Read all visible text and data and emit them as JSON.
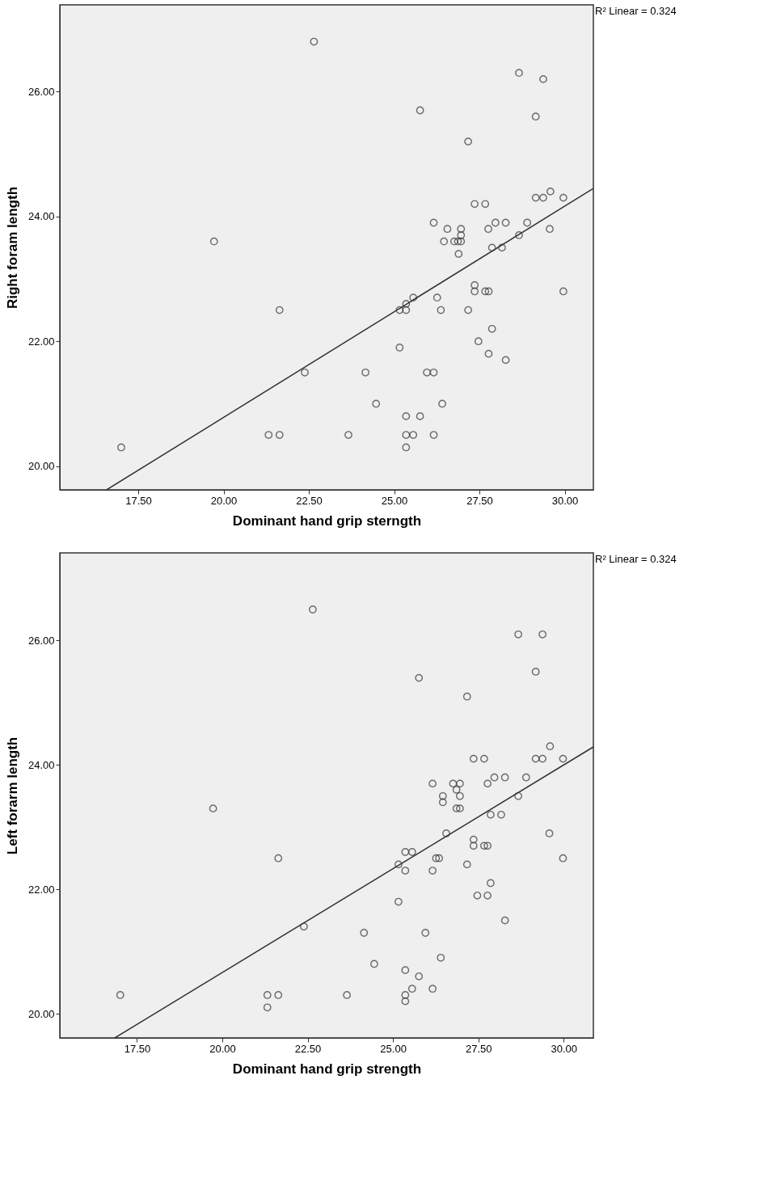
{
  "chart_data": [
    {
      "type": "scatter",
      "xlabel": "Dominant hand grip sterngth",
      "ylabel": "Right foram length",
      "xlim": [
        15.2,
        30.84
      ],
      "ylim": [
        19.62,
        27.39
      ],
      "xticks": [
        {
          "value": 17.5,
          "label": "17.50"
        },
        {
          "value": 20,
          "label": "20.00"
        },
        {
          "value": 22.5,
          "label": "22.50"
        },
        {
          "value": 25,
          "label": "25.00"
        },
        {
          "value": 27.5,
          "label": "27.50"
        },
        {
          "value": 30,
          "label": "30.00"
        }
      ],
      "yticks": [
        {
          "value": 20,
          "label": "20.00"
        },
        {
          "value": 22,
          "label": "22.00"
        },
        {
          "value": 24,
          "label": "24.00"
        },
        {
          "value": 26,
          "label": "26.00"
        }
      ],
      "annotations": [
        "R² Linear = 0.324"
      ],
      "series": [
        {
          "marker": "circle",
          "color": "#333333",
          "x": [
            22.65,
            19.72,
            21.64,
            22.38,
            24.16,
            24.47,
            17.0,
            21.32,
            21.64,
            23.66,
            28.66,
            29.37,
            25.76,
            29.15,
            27.17,
            27.36,
            27.67,
            29.15,
            29.37,
            29.58,
            29.96,
            26.16,
            26.56,
            26.96,
            26.96,
            27.76,
            27.97,
            28.27,
            28.9,
            29.56,
            26.46,
            26.76,
            26.87,
            26.96,
            26.89,
            28.66,
            27.87,
            28.16,
            27.36,
            27.36,
            27.67,
            27.77,
            29.96,
            25.56,
            25.35,
            26.26,
            25.16,
            25.35,
            26.37,
            27.17,
            27.87,
            27.47,
            27.77,
            28.27,
            25.16,
            25.96,
            26.16,
            26.41,
            25.35,
            25.76,
            25.35,
            25.56,
            26.16,
            25.35
          ],
          "values": [
            26.8,
            23.6,
            22.5,
            21.5,
            21.5,
            21.0,
            20.3,
            20.5,
            20.5,
            20.5,
            26.3,
            26.2,
            25.7,
            25.6,
            25.2,
            24.2,
            24.2,
            24.3,
            24.3,
            24.4,
            24.3,
            23.9,
            23.8,
            23.8,
            23.7,
            23.8,
            23.9,
            23.9,
            23.9,
            23.8,
            23.6,
            23.6,
            23.6,
            23.6,
            23.4,
            23.7,
            23.5,
            23.5,
            22.9,
            22.8,
            22.8,
            22.8,
            22.8,
            22.7,
            22.6,
            22.7,
            22.5,
            22.5,
            22.5,
            22.5,
            22.2,
            22.0,
            21.8,
            21.7,
            21.9,
            21.5,
            21.5,
            21.0,
            20.8,
            20.8,
            20.5,
            20.5,
            20.5,
            20.3
          ]
        },
        {
          "type": "line",
          "color": "#333333",
          "x": [
            16.57,
            30.84
          ],
          "values": [
            19.62,
            24.45
          ]
        }
      ]
    },
    {
      "type": "scatter",
      "xlabel": "Dominant hand grip strength",
      "ylabel": "Left forarm length",
      "xlim": [
        15.24,
        30.87
      ],
      "ylim": [
        19.61,
        27.41
      ],
      "xticks": [
        {
          "value": 17.5,
          "label": "17.50"
        },
        {
          "value": 20,
          "label": "20.00"
        },
        {
          "value": 22.5,
          "label": "22.50"
        },
        {
          "value": 25,
          "label": "25.00"
        },
        {
          "value": 27.5,
          "label": "27.50"
        },
        {
          "value": 30,
          "label": "30.00"
        }
      ],
      "yticks": [
        {
          "value": 20,
          "label": "20.00"
        },
        {
          "value": 22,
          "label": "22.00"
        },
        {
          "value": 24,
          "label": "24.00"
        },
        {
          "value": 26,
          "label": "26.00"
        }
      ],
      "annotations": [
        "R² Linear = 0.324"
      ],
      "series": [
        {
          "marker": "circle",
          "color": "#333333",
          "x": [
            22.65,
            19.73,
            21.64,
            22.39,
            24.15,
            24.45,
            17.01,
            21.32,
            21.64,
            21.32,
            23.65,
            28.67,
            29.38,
            29.18,
            25.76,
            27.17,
            29.6,
            27.36,
            27.67,
            29.18,
            29.38,
            29.98,
            26.16,
            26.76,
            26.96,
            27.77,
            27.97,
            28.28,
            28.9,
            26.86,
            26.46,
            26.96,
            26.46,
            28.67,
            26.86,
            26.96,
            27.86,
            28.17,
            26.56,
            29.58,
            27.36,
            27.36,
            27.67,
            27.77,
            25.36,
            25.56,
            26.26,
            26.35,
            29.98,
            25.16,
            27.17,
            25.36,
            26.16,
            27.86,
            27.47,
            27.77,
            25.16,
            28.28,
            25.95,
            26.4,
            25.36,
            25.76,
            25.56,
            26.16,
            25.36,
            25.36
          ],
          "values": [
            26.5,
            23.3,
            22.5,
            21.4,
            21.3,
            20.8,
            20.3,
            20.3,
            20.3,
            20.1,
            20.3,
            26.1,
            26.1,
            25.5,
            25.4,
            25.1,
            24.3,
            24.1,
            24.1,
            24.1,
            24.1,
            24.1,
            23.7,
            23.7,
            23.7,
            23.7,
            23.8,
            23.8,
            23.8,
            23.6,
            23.5,
            23.5,
            23.4,
            23.5,
            23.3,
            23.3,
            23.2,
            23.2,
            22.9,
            22.9,
            22.8,
            22.7,
            22.7,
            22.7,
            22.6,
            22.6,
            22.5,
            22.5,
            22.5,
            22.4,
            22.4,
            22.3,
            22.3,
            22.1,
            21.9,
            21.9,
            21.8,
            21.5,
            21.3,
            20.9,
            20.7,
            20.6,
            20.4,
            20.4,
            20.3,
            20.2
          ]
        },
        {
          "type": "line",
          "color": "#333333",
          "x": [
            16.85,
            30.87
          ],
          "values": [
            19.61,
            24.29
          ]
        }
      ]
    }
  ]
}
